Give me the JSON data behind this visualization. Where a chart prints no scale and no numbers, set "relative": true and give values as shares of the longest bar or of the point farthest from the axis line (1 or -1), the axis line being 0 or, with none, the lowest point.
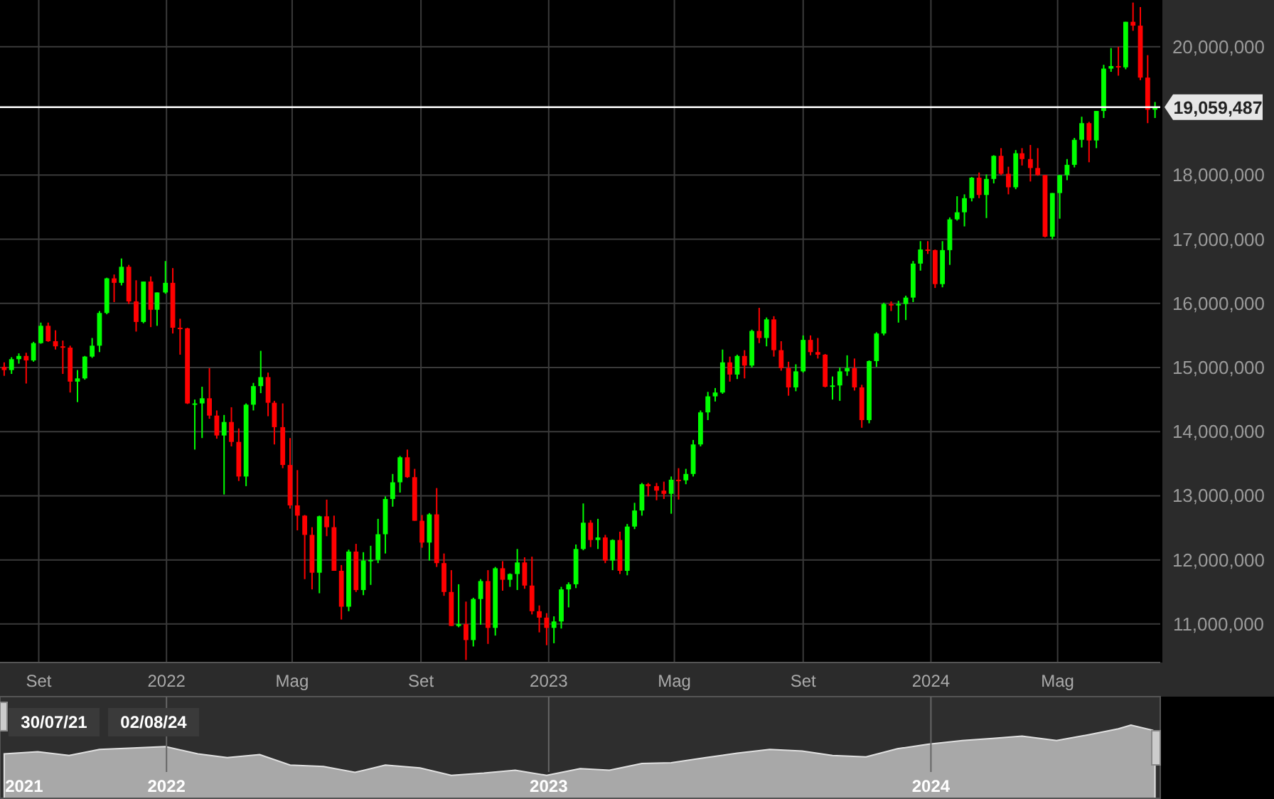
{
  "chart_data": [
    {
      "type": "candlestick",
      "x": [
        "2021-07-30",
        "2021-08-06",
        "2021-08-13",
        "2021-08-20",
        "2021-08-27",
        "2021-09-03",
        "2021-09-10",
        "2021-09-17",
        "2021-09-24",
        "2021-10-01",
        "2021-10-08",
        "2021-10-15",
        "2021-10-22",
        "2021-10-29",
        "2021-11-05",
        "2021-11-12",
        "2021-11-19",
        "2021-11-26",
        "2021-12-03",
        "2021-12-10",
        "2021-12-17",
        "2021-12-23",
        "2021-12-31",
        "2022-01-07",
        "2022-01-14",
        "2022-01-21",
        "2022-01-28",
        "2022-02-04",
        "2022-02-11",
        "2022-02-18",
        "2022-02-25",
        "2022-03-04",
        "2022-03-11",
        "2022-03-18",
        "2022-03-25",
        "2022-04-01",
        "2022-04-08",
        "2022-04-14",
        "2022-04-22",
        "2022-04-29",
        "2022-05-06",
        "2022-05-13",
        "2022-05-20",
        "2022-05-27",
        "2022-06-03",
        "2022-06-10",
        "2022-06-17",
        "2022-06-24",
        "2022-07-01",
        "2022-07-08",
        "2022-07-15",
        "2022-07-22",
        "2022-07-29",
        "2022-08-05",
        "2022-08-12",
        "2022-08-19",
        "2022-08-26",
        "2022-09-02",
        "2022-09-09",
        "2022-09-16",
        "2022-09-23",
        "2022-09-30",
        "2022-10-07",
        "2022-10-14",
        "2022-10-21",
        "2022-10-28",
        "2022-11-04",
        "2022-11-11",
        "2022-11-18",
        "2022-11-25",
        "2022-12-02",
        "2022-12-09",
        "2022-12-16",
        "2022-12-23",
        "2022-12-30",
        "2023-01-06",
        "2023-01-13",
        "2023-01-20",
        "2023-01-27",
        "2023-02-03",
        "2023-02-10",
        "2023-02-17",
        "2023-02-24",
        "2023-03-03",
        "2023-03-10",
        "2023-03-17",
        "2023-03-24",
        "2023-03-31",
        "2023-04-06",
        "2023-04-14",
        "2023-04-21",
        "2023-04-28",
        "2023-05-05",
        "2023-05-12",
        "2023-05-19",
        "2023-05-26",
        "2023-06-02",
        "2023-06-09",
        "2023-06-16",
        "2023-06-23",
        "2023-06-30",
        "2023-07-07",
        "2023-07-14",
        "2023-07-21",
        "2023-07-28",
        "2023-08-04",
        "2023-08-11",
        "2023-08-18",
        "2023-08-25",
        "2023-09-01",
        "2023-09-08",
        "2023-09-15",
        "2023-09-22",
        "2023-09-29",
        "2023-10-06",
        "2023-10-13",
        "2023-10-20",
        "2023-10-27",
        "2023-11-03",
        "2023-11-10",
        "2023-11-17",
        "2023-11-24",
        "2023-12-01",
        "2023-12-08",
        "2023-12-15",
        "2023-12-22",
        "2023-12-29",
        "2024-01-05",
        "2024-01-12",
        "2024-01-19",
        "2024-01-26",
        "2024-02-02",
        "2024-02-09",
        "2024-02-16",
        "2024-02-23",
        "2024-03-01",
        "2024-03-08",
        "2024-03-15",
        "2024-03-22",
        "2024-03-28",
        "2024-04-05",
        "2024-04-12",
        "2024-04-19",
        "2024-04-26",
        "2024-05-03",
        "2024-05-10",
        "2024-05-17",
        "2024-05-24",
        "2024-05-31",
        "2024-06-07",
        "2024-06-14",
        "2024-06-21",
        "2024-06-28",
        "2024-07-05",
        "2024-07-12",
        "2024-07-19",
        "2024-07-26",
        "2024-08-02"
      ],
      "ohlc": [
        [
          15010000,
          15080000,
          14870000,
          14960000
        ],
        [
          14960000,
          15160000,
          14900000,
          15130000
        ],
        [
          15130000,
          15220000,
          15060000,
          15180000
        ],
        [
          15180000,
          15230000,
          14750000,
          15110000
        ],
        [
          15110000,
          15400000,
          15090000,
          15380000
        ],
        [
          15380000,
          15700000,
          15370000,
          15650000
        ],
        [
          15650000,
          15700000,
          15400000,
          15410000
        ],
        [
          15410000,
          15580000,
          15280000,
          15330000
        ],
        [
          15330000,
          15420000,
          14900000,
          15310000
        ],
        [
          15310000,
          15340000,
          14610000,
          14780000
        ],
        [
          14780000,
          14960000,
          14460000,
          14830000
        ],
        [
          14830000,
          15180000,
          14810000,
          15170000
        ],
        [
          15170000,
          15460000,
          15150000,
          15340000
        ],
        [
          15340000,
          15880000,
          15240000,
          15850000
        ],
        [
          15850000,
          16400000,
          15830000,
          16390000
        ],
        [
          16390000,
          16450000,
          16020000,
          16320000
        ],
        [
          16320000,
          16700000,
          16280000,
          16570000
        ],
        [
          16570000,
          16600000,
          15990000,
          16030000
        ],
        [
          16030000,
          16360000,
          15560000,
          15710000
        ],
        [
          15710000,
          16340000,
          15690000,
          16340000
        ],
        [
          16340000,
          16420000,
          15630000,
          15900000
        ],
        [
          15900000,
          16170000,
          15650000,
          16170000
        ],
        [
          16170000,
          16660000,
          16150000,
          16320000
        ],
        [
          16320000,
          16550000,
          15530000,
          15620000
        ],
        [
          15620000,
          15760000,
          15200000,
          15610000
        ],
        [
          15610000,
          15620000,
          14430000,
          14440000
        ],
        [
          14440000,
          14500000,
          13720000,
          14440000
        ],
        [
          14440000,
          14700000,
          13900000,
          14520000
        ],
        [
          14520000,
          14990000,
          14200000,
          14250000
        ],
        [
          14250000,
          14330000,
          13890000,
          13940000
        ],
        [
          13940000,
          14260000,
          13020000,
          14150000
        ],
        [
          14150000,
          14380000,
          13770000,
          13840000
        ],
        [
          13840000,
          14050000,
          13230000,
          13300000
        ],
        [
          13300000,
          14440000,
          13150000,
          14420000
        ],
        [
          14420000,
          14760000,
          14330000,
          14710000
        ],
        [
          14710000,
          15260000,
          14600000,
          14850000
        ],
        [
          14850000,
          14920000,
          14240000,
          14450000
        ],
        [
          14450000,
          14480000,
          13800000,
          14070000
        ],
        [
          14070000,
          14440000,
          13430000,
          13480000
        ],
        [
          13480000,
          13900000,
          12800000,
          12850000
        ],
        [
          12850000,
          13400000,
          12460000,
          12690000
        ],
        [
          12690000,
          12700000,
          11700000,
          12390000
        ],
        [
          12390000,
          12510000,
          11540000,
          11800000
        ],
        [
          11800000,
          12690000,
          11480000,
          12680000
        ],
        [
          12680000,
          12940000,
          12370000,
          12510000
        ],
        [
          12510000,
          12690000,
          11830000,
          11830000
        ],
        [
          11830000,
          11920000,
          11070000,
          11270000
        ],
        [
          11270000,
          12160000,
          11200000,
          12130000
        ],
        [
          12130000,
          12250000,
          11500000,
          11530000
        ],
        [
          11530000,
          12120000,
          11450000,
          11990000
        ],
        [
          11990000,
          12220000,
          11610000,
          12000000
        ],
        [
          12000000,
          12640000,
          11950000,
          12400000
        ],
        [
          12400000,
          12990000,
          12100000,
          12950000
        ],
        [
          12950000,
          13340000,
          12830000,
          13210000
        ],
        [
          13210000,
          13620000,
          13050000,
          13600000
        ],
        [
          13600000,
          13720000,
          13280000,
          13290000
        ],
        [
          13290000,
          13420000,
          12610000,
          12610000
        ],
        [
          12610000,
          12700000,
          12190000,
          12270000
        ],
        [
          12270000,
          12730000,
          11990000,
          12710000
        ],
        [
          12710000,
          13120000,
          11890000,
          11950000
        ],
        [
          11950000,
          12100000,
          11440000,
          11500000
        ],
        [
          11500000,
          11840000,
          10970000,
          10970000
        ],
        [
          10970000,
          11620000,
          10950000,
          11000000
        ],
        [
          11000000,
          11350000,
          10440000,
          10750000
        ],
        [
          10750000,
          11410000,
          10650000,
          11390000
        ],
        [
          11390000,
          11700000,
          10990000,
          11670000
        ],
        [
          11670000,
          11840000,
          10690000,
          10940000
        ],
        [
          10940000,
          11890000,
          10820000,
          11870000
        ],
        [
          11870000,
          11980000,
          11520000,
          11690000
        ],
        [
          11690000,
          11790000,
          11580000,
          11780000
        ],
        [
          11780000,
          12170000,
          11530000,
          11960000
        ],
        [
          11960000,
          12040000,
          11550000,
          11600000
        ],
        [
          11600000,
          12050000,
          11150000,
          11200000
        ],
        [
          11200000,
          11290000,
          10870000,
          11100000
        ],
        [
          11100000,
          11170000,
          10670000,
          10940000
        ],
        [
          10940000,
          11120000,
          10700000,
          11040000
        ],
        [
          11040000,
          11580000,
          10930000,
          11540000
        ],
        [
          11540000,
          11650000,
          11260000,
          11620000
        ],
        [
          11620000,
          12240000,
          11560000,
          12170000
        ],
        [
          12170000,
          12880000,
          12150000,
          12580000
        ],
        [
          12580000,
          12620000,
          12200000,
          12310000
        ],
        [
          12310000,
          12640000,
          12170000,
          12350000
        ],
        [
          12350000,
          12390000,
          11950000,
          11990000
        ],
        [
          11990000,
          12320000,
          11840000,
          12310000
        ],
        [
          12310000,
          12440000,
          11780000,
          11830000
        ],
        [
          11830000,
          12560000,
          11760000,
          12520000
        ],
        [
          12520000,
          12890000,
          12480000,
          12770000
        ],
        [
          12770000,
          13200000,
          12690000,
          13180000
        ],
        [
          13180000,
          13200000,
          12990000,
          13150000
        ],
        [
          13150000,
          13200000,
          12930000,
          13080000
        ],
        [
          13080000,
          13220000,
          12950000,
          13030000
        ],
        [
          13030000,
          13300000,
          12720000,
          13250000
        ],
        [
          13250000,
          13430000,
          12940000,
          13240000
        ],
        [
          13240000,
          13420000,
          13180000,
          13340000
        ],
        [
          13340000,
          13870000,
          13300000,
          13800000
        ],
        [
          13800000,
          14330000,
          13770000,
          14300000
        ],
        [
          14300000,
          14620000,
          14180000,
          14550000
        ],
        [
          14550000,
          14680000,
          14470000,
          14610000
        ],
        [
          14610000,
          15280000,
          14590000,
          15080000
        ],
        [
          15080000,
          15170000,
          14780000,
          14890000
        ],
        [
          14890000,
          15200000,
          14820000,
          15180000
        ],
        [
          15180000,
          15270000,
          14830000,
          15030000
        ],
        [
          15030000,
          15590000,
          15000000,
          15570000
        ],
        [
          15570000,
          15930000,
          15380000,
          15460000
        ],
        [
          15460000,
          15780000,
          15330000,
          15750000
        ],
        [
          15750000,
          15800000,
          15170000,
          15270000
        ],
        [
          15270000,
          15410000,
          14950000,
          14990000
        ],
        [
          14990000,
          15090000,
          14560000,
          14690000
        ],
        [
          14690000,
          15050000,
          14630000,
          14940000
        ],
        [
          14940000,
          15500000,
          14920000,
          15430000
        ],
        [
          15430000,
          15500000,
          15190000,
          15240000
        ],
        [
          15240000,
          15460000,
          15140000,
          15200000
        ],
        [
          15200000,
          15210000,
          14690000,
          14700000
        ],
        [
          14700000,
          14860000,
          14500000,
          14720000
        ],
        [
          14720000,
          15000000,
          14480000,
          14940000
        ],
        [
          14940000,
          15190000,
          14870000,
          14990000
        ],
        [
          14990000,
          15140000,
          14640000,
          14690000
        ],
        [
          14690000,
          14730000,
          14060000,
          14180000
        ],
        [
          14180000,
          15110000,
          14130000,
          15100000
        ],
        [
          15100000,
          15550000,
          15010000,
          15530000
        ],
        [
          15530000,
          16010000,
          15500000,
          15990000
        ],
        [
          15990000,
          16030000,
          15880000,
          15980000
        ],
        [
          15980000,
          16040000,
          15700000,
          15990000
        ],
        [
          15990000,
          16120000,
          15740000,
          16090000
        ],
        [
          16090000,
          16660000,
          16020000,
          16620000
        ],
        [
          16620000,
          16970000,
          16510000,
          16840000
        ],
        [
          16840000,
          16970000,
          16770000,
          16830000
        ],
        [
          16830000,
          16840000,
          16240000,
          16300000
        ],
        [
          16300000,
          16970000,
          16250000,
          16830000
        ],
        [
          16830000,
          17340000,
          16600000,
          17310000
        ],
        [
          17310000,
          17670000,
          17290000,
          17420000
        ],
        [
          17420000,
          17700000,
          17200000,
          17640000
        ],
        [
          17640000,
          17970000,
          17590000,
          17960000
        ],
        [
          17960000,
          18040000,
          17640000,
          17690000
        ],
        [
          17690000,
          18010000,
          17330000,
          17940000
        ],
        [
          17940000,
          18310000,
          17870000,
          18300000
        ],
        [
          18300000,
          18420000,
          18000000,
          18020000
        ],
        [
          18020000,
          18130000,
          17700000,
          17810000
        ],
        [
          17810000,
          18390000,
          17780000,
          18340000
        ],
        [
          18340000,
          18420000,
          18150000,
          18250000
        ],
        [
          18250000,
          18470000,
          17900000,
          18110000
        ],
        [
          18110000,
          18420000,
          17990000,
          18000000
        ],
        [
          18000000,
          18000000,
          17030000,
          17040000
        ],
        [
          17040000,
          17720000,
          17000000,
          17720000
        ],
        [
          17720000,
          18000000,
          17320000,
          18000000
        ],
        [
          18000000,
          18250000,
          17920000,
          18160000
        ],
        [
          18160000,
          18580000,
          18120000,
          18550000
        ],
        [
          18550000,
          18910000,
          18430000,
          18810000
        ],
        [
          18810000,
          18830000,
          18200000,
          18540000
        ],
        [
          18540000,
          19000000,
          18420000,
          19000000
        ],
        [
          19000000,
          19720000,
          18890000,
          19660000
        ],
        [
          19660000,
          19980000,
          19610000,
          19700000
        ],
        [
          19700000,
          20000000,
          19550000,
          19680000
        ],
        [
          19680000,
          20390000,
          19650000,
          20390000
        ],
        [
          20390000,
          20690000,
          20250000,
          20330000
        ],
        [
          20330000,
          20620000,
          19480000,
          19520000
        ],
        [
          19520000,
          19870000,
          18810000,
          19020000
        ],
        [
          19020000,
          19140000,
          18890000,
          19059487
        ]
      ],
      "xlim": [
        "2021-07-26",
        "2024-08-07"
      ],
      "xticks": [
        {
          "value": "2021-09-01",
          "label": "Set"
        },
        {
          "value": "2022-01-01",
          "label": "2022"
        },
        {
          "value": "2022-05-01",
          "label": "Mag"
        },
        {
          "value": "2022-09-01",
          "label": "Set"
        },
        {
          "value": "2023-01-01",
          "label": "2023"
        },
        {
          "value": "2023-05-01",
          "label": "Mag"
        },
        {
          "value": "2023-09-01",
          "label": "Set"
        },
        {
          "value": "2024-01-01",
          "label": "2024"
        },
        {
          "value": "2024-05-01",
          "label": "Mag"
        }
      ],
      "ylim": [
        10400000,
        20730000
      ],
      "yticks": [
        {
          "value": 11000000,
          "label": "11,000,000"
        },
        {
          "value": 12000000,
          "label": "12,000,000"
        },
        {
          "value": 13000000,
          "label": "13,000,000"
        },
        {
          "value": 14000000,
          "label": "14,000,000"
        },
        {
          "value": 15000000,
          "label": "15,000,000"
        },
        {
          "value": 16000000,
          "label": "16,000,000"
        },
        {
          "value": 17000000,
          "label": "17,000,000"
        },
        {
          "value": 18000000,
          "label": "18,000,000"
        },
        {
          "value": 20000000,
          "label": "20,000,000"
        }
      ],
      "ref_lines": [
        {
          "axis": "y",
          "value": 19059487,
          "label": "19,059,487",
          "color": "#ffffff"
        }
      ],
      "grid": true
    },
    {
      "type": "area",
      "relative": true,
      "color": "#bdbdbd",
      "x": [
        "2021-07-30",
        "2021-08-31",
        "2021-09-30",
        "2021-10-29",
        "2021-11-30",
        "2021-12-31",
        "2022-01-31",
        "2022-02-28",
        "2022-03-31",
        "2022-04-29",
        "2022-05-31",
        "2022-06-30",
        "2022-07-29",
        "2022-08-31",
        "2022-09-30",
        "2022-10-31",
        "2022-11-30",
        "2022-12-30",
        "2023-01-31",
        "2023-02-28",
        "2023-03-31",
        "2023-04-28",
        "2023-05-31",
        "2023-06-30",
        "2023-07-31",
        "2023-08-31",
        "2023-09-29",
        "2023-10-31",
        "2023-11-30",
        "2023-12-29",
        "2024-01-31",
        "2024-02-29",
        "2024-03-28",
        "2024-04-30",
        "2024-05-31",
        "2024-06-28",
        "2024-07-10",
        "2024-07-31",
        "2024-08-02"
      ],
      "values": [
        0.61,
        0.64,
        0.59,
        0.67,
        0.69,
        0.71,
        0.61,
        0.56,
        0.6,
        0.46,
        0.44,
        0.36,
        0.46,
        0.42,
        0.32,
        0.35,
        0.39,
        0.32,
        0.41,
        0.39,
        0.48,
        0.49,
        0.56,
        0.62,
        0.67,
        0.65,
        0.59,
        0.57,
        0.68,
        0.74,
        0.79,
        0.82,
        0.85,
        0.79,
        0.87,
        0.95,
        1,
        0.93,
        0.9
      ],
      "xlim": [
        "2021-07-26",
        "2024-08-07"
      ],
      "xticks": [
        {
          "value": "2021-08-18",
          "label": "2021"
        },
        {
          "value": "2022-01-01",
          "label": "2022"
        },
        {
          "value": "2023-01-01",
          "label": "2023"
        },
        {
          "value": "2024-01-01",
          "label": "2024"
        }
      ],
      "grid": "x",
      "annotations": [
        "30/07/21",
        "02/08/24"
      ]
    }
  ]
}
